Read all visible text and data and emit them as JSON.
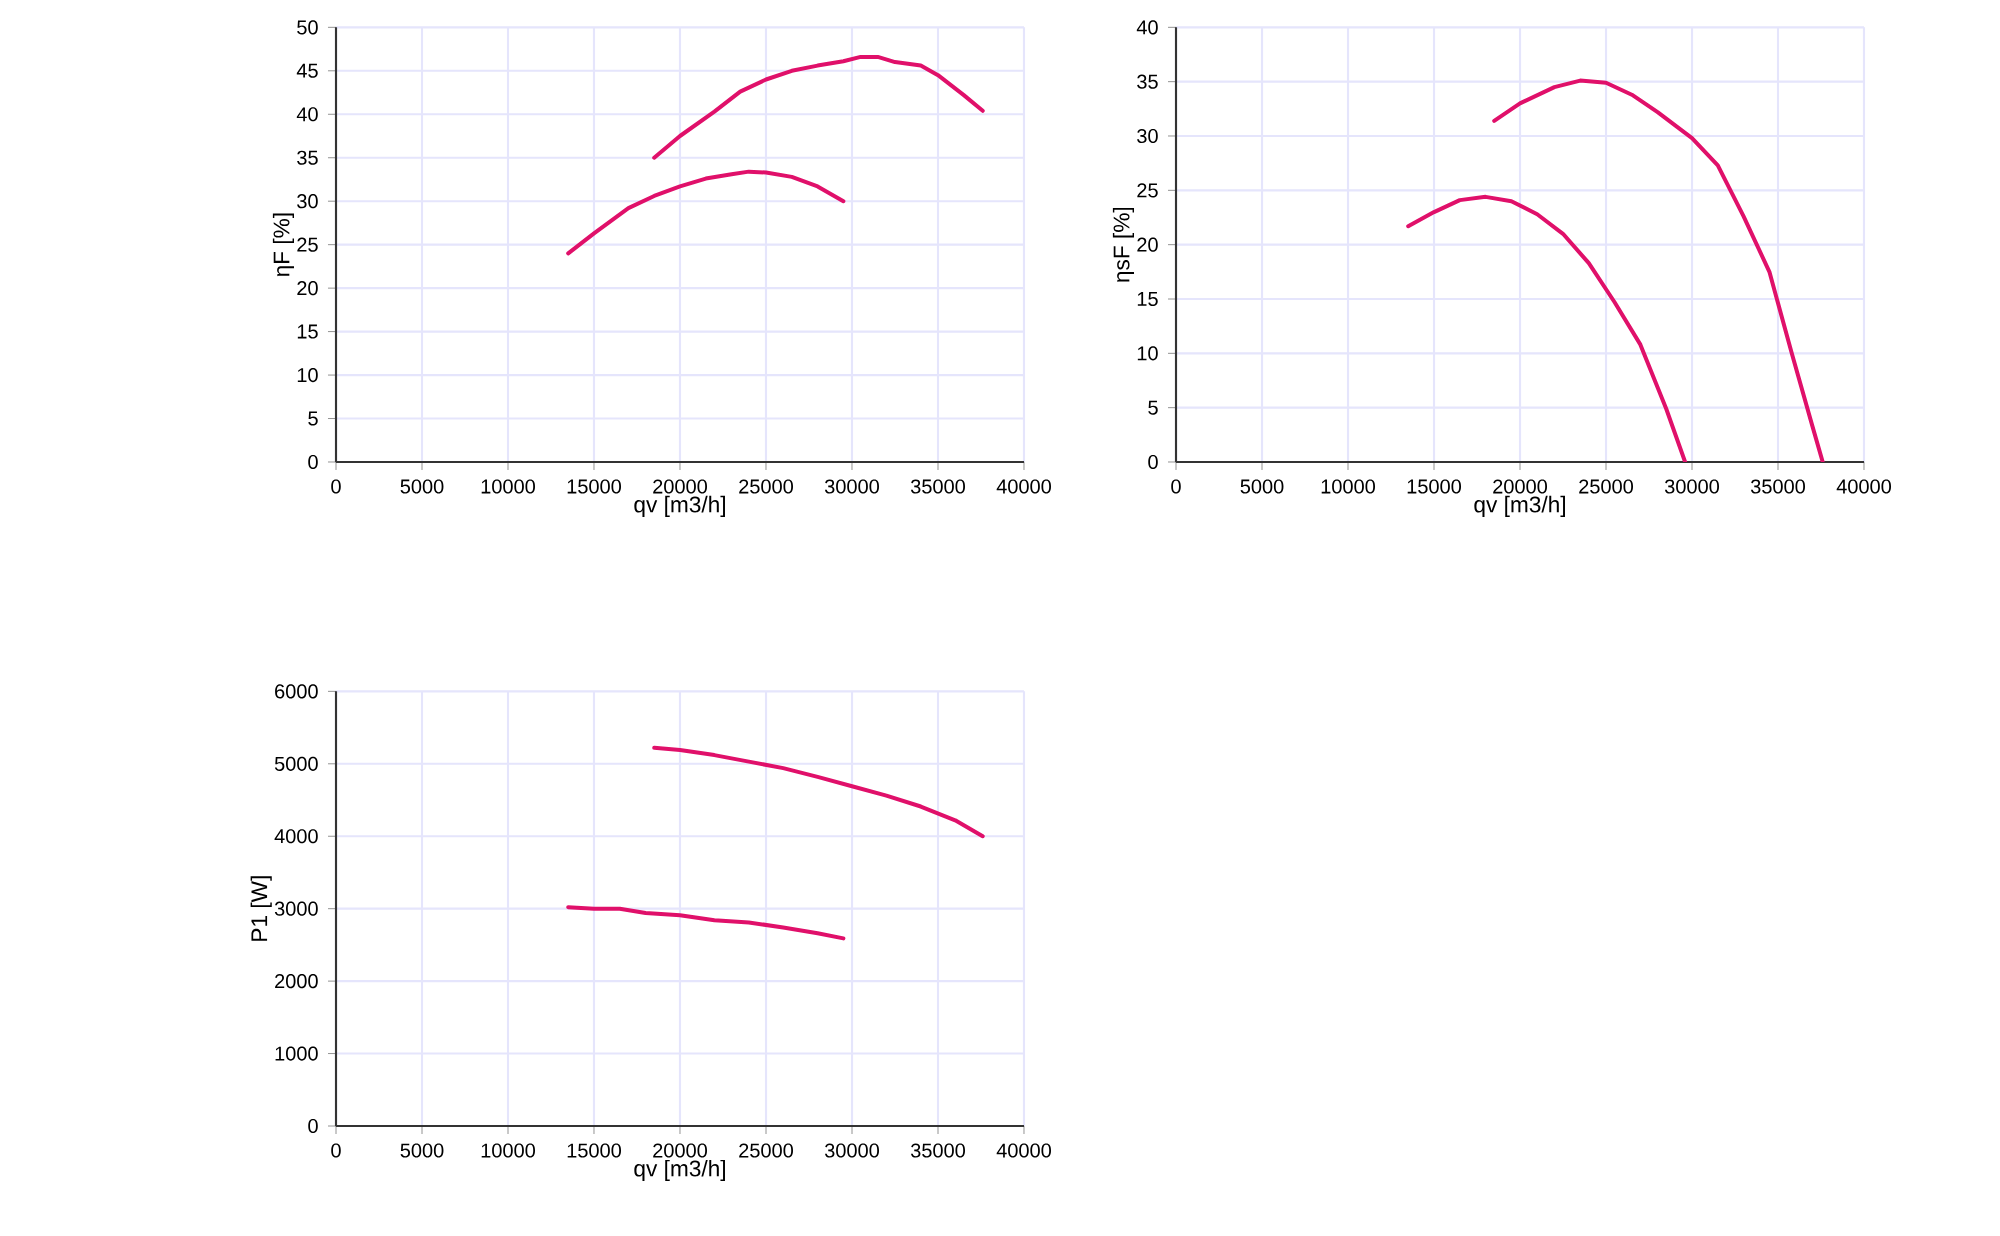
{
  "chart_data": [
    {
      "type": "line",
      "xlabel": "qv [m3/h]",
      "ylabel": "ηF [%]",
      "xlim": [
        0,
        40000
      ],
      "ylim": [
        0,
        50
      ],
      "xticks": [
        0,
        5000,
        10000,
        15000,
        20000,
        25000,
        30000,
        35000,
        40000
      ],
      "yticks": [
        0,
        5,
        10,
        15,
        20,
        25,
        30,
        35,
        40,
        45,
        50
      ],
      "grid": true,
      "series": [
        {
          "color": "#e0106a",
          "x": [
            13500,
            15000,
            17000,
            18500,
            20000,
            21500,
            23000,
            24000,
            25000,
            26500,
            28000,
            29500
          ],
          "values": [
            24,
            26.3,
            29.2,
            30.6,
            31.7,
            32.6,
            33.1,
            33.4,
            33.3,
            32.8,
            31.7,
            30
          ]
        },
        {
          "color": "#e0106a",
          "x": [
            18500,
            20000,
            22000,
            23500,
            25000,
            26500,
            28000,
            29500,
            30500,
            31500,
            32500,
            34000,
            35000,
            36500,
            37600
          ],
          "values": [
            35,
            37.5,
            40.3,
            42.6,
            44.0,
            45,
            45.6,
            46.1,
            46.6,
            46.6,
            46.0,
            45.6,
            44.5,
            42.2,
            40.4
          ]
        }
      ]
    },
    {
      "type": "line",
      "xlabel": "qv [m3/h]",
      "ylabel": "ηsF [%]",
      "xlim": [
        0,
        40000
      ],
      "ylim": [
        0,
        40
      ],
      "xticks": [
        0,
        5000,
        10000,
        15000,
        20000,
        25000,
        30000,
        35000,
        40000
      ],
      "yticks": [
        0,
        5,
        10,
        15,
        20,
        25,
        30,
        35,
        40
      ],
      "grid": true,
      "series": [
        {
          "color": "#e0106a",
          "x": [
            13500,
            15000,
            16500,
            18000,
            19500,
            21000,
            22500,
            24000,
            25500,
            27000,
            28500,
            29600
          ],
          "values": [
            21.7,
            23,
            24.1,
            24.4,
            24.0,
            22.8,
            21,
            18.3,
            14.7,
            10.8,
            4.9,
            0
          ]
        },
        {
          "color": "#e0106a",
          "x": [
            18500,
            20000,
            22000,
            23500,
            25000,
            26500,
            28000,
            30000,
            31500,
            33000,
            34500,
            35800,
            37000,
            37600
          ],
          "values": [
            31.4,
            33,
            34.5,
            35.1,
            34.9,
            33.8,
            32.2,
            29.8,
            27.3,
            22.6,
            17.5,
            10,
            3.3,
            0
          ]
        }
      ]
    },
    {
      "type": "line",
      "xlabel": "qv [m3/h]",
      "ylabel": "P1 [W]",
      "xlim": [
        0,
        40000
      ],
      "ylim": [
        0,
        6000
      ],
      "xticks": [
        0,
        5000,
        10000,
        15000,
        20000,
        25000,
        30000,
        35000,
        40000
      ],
      "yticks": [
        0,
        1000,
        2000,
        3000,
        4000,
        5000,
        6000
      ],
      "grid": true,
      "series": [
        {
          "color": "#e0106a",
          "x": [
            13500,
            15000,
            16500,
            18000,
            20000,
            22000,
            24000,
            26000,
            28000,
            29500
          ],
          "values": [
            3020,
            3000,
            3000,
            2940,
            2910,
            2840,
            2810,
            2740,
            2660,
            2590
          ]
        },
        {
          "color": "#e0106a",
          "x": [
            18500,
            20000,
            22000,
            24000,
            26000,
            28000,
            30000,
            32000,
            34000,
            36000,
            37600
          ],
          "values": [
            5220,
            5190,
            5120,
            5030,
            4940,
            4820,
            4690,
            4560,
            4410,
            4220,
            4000
          ]
        }
      ]
    }
  ]
}
